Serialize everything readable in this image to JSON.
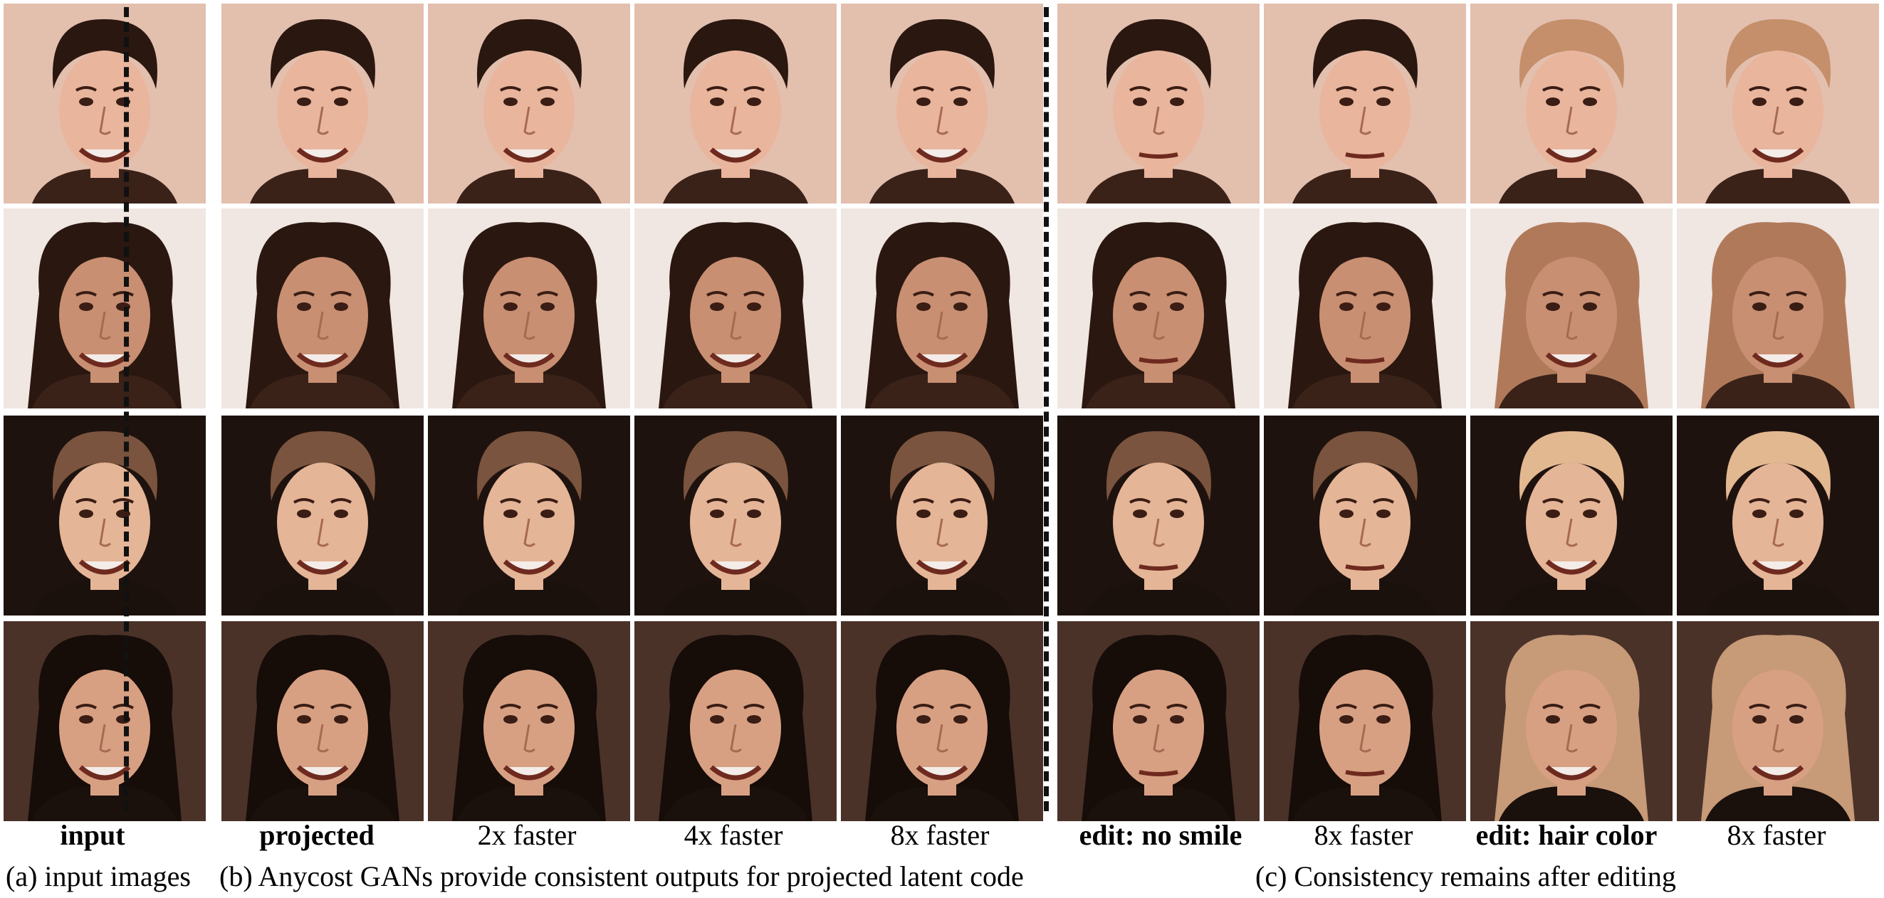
{
  "figure": {
    "columns": [
      {
        "label": "input",
        "bold": true
      },
      {
        "label": "projected",
        "bold": true
      },
      {
        "label": "2x faster",
        "bold": false
      },
      {
        "label": "4x faster",
        "bold": false
      },
      {
        "label": "8x faster",
        "bold": false
      },
      {
        "label": "edit: no smile",
        "bold": true
      },
      {
        "label": "8x faster",
        "bold": false
      },
      {
        "label": "edit: hair color",
        "bold": true
      },
      {
        "label": "8x faster",
        "bold": false
      }
    ],
    "captions": {
      "a": "(a) input images",
      "b": "(b) Anycost GANs provide consistent outputs for projected latent code",
      "c": "(c) Consistency remains after editing"
    }
  },
  "palette": {
    "backgrounds": [
      "#e3bfae",
      "#f0e6e2",
      "#1e120e",
      "#4a3229"
    ],
    "skin": [
      "#e9b59c",
      "#c98f72",
      "#e5b597",
      "#d8a083"
    ],
    "hair_dark": [
      "#2a1710",
      "#2a1710",
      "#7a543e",
      "#160c08"
    ],
    "hair_light": [
      "#c48f6a",
      "#b07a5a",
      "#e2b891",
      "#c79a78"
    ],
    "clothing": [
      "#3a2219",
      "#3a2219",
      "#1a100c",
      "#1a100c"
    ]
  }
}
